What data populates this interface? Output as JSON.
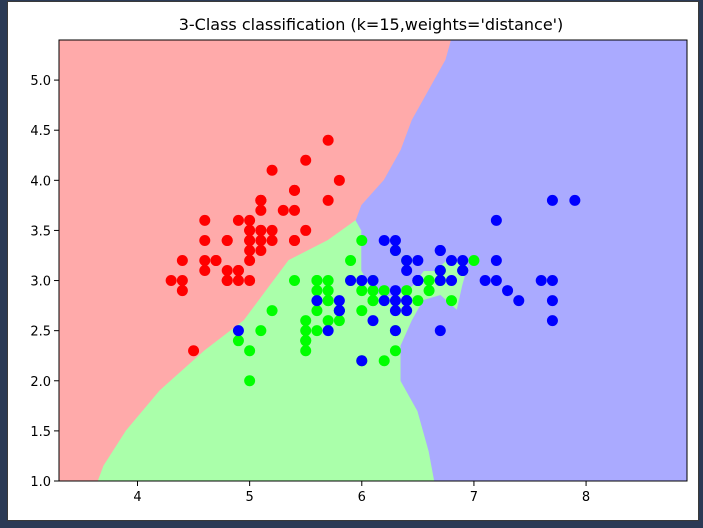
{
  "chart_data": {
    "type": "scatter",
    "title": "3-Class classification (k=15,weights='distance')",
    "xlabel": "",
    "ylabel": "",
    "xlim": [
      3.3,
      8.9
    ],
    "ylim": [
      1.0,
      5.4
    ],
    "xticks": [
      {
        "v": 4,
        "label": "4"
      },
      {
        "v": 5,
        "label": "5"
      },
      {
        "v": 6,
        "label": "6"
      },
      {
        "v": 7,
        "label": "7"
      },
      {
        "v": 8,
        "label": "8"
      }
    ],
    "yticks": [
      {
        "v": 1.0,
        "label": "1.0"
      },
      {
        "v": 1.5,
        "label": "1.5"
      },
      {
        "v": 2.0,
        "label": "2.0"
      },
      {
        "v": 2.5,
        "label": "2.5"
      },
      {
        "v": 3.0,
        "label": "3.0"
      },
      {
        "v": 3.5,
        "label": "3.5"
      },
      {
        "v": 4.0,
        "label": "4.0"
      },
      {
        "v": 4.5,
        "label": "4.5"
      },
      {
        "v": 5.0,
        "label": "5.0"
      }
    ],
    "grid": false,
    "regions": [
      {
        "class": "red",
        "color": "#ffaaaa",
        "points": [
          [
            3.3,
            1.0
          ],
          [
            3.3,
            5.4
          ],
          [
            6.8,
            5.4
          ],
          [
            6.75,
            5.2
          ],
          [
            6.6,
            4.9
          ],
          [
            6.45,
            4.6
          ],
          [
            6.35,
            4.3
          ],
          [
            6.2,
            4.0
          ],
          [
            6.0,
            3.75
          ],
          [
            5.95,
            3.6
          ],
          [
            5.7,
            3.4
          ],
          [
            5.35,
            3.2
          ],
          [
            5.15,
            2.9
          ],
          [
            4.95,
            2.6
          ],
          [
            4.6,
            2.3
          ],
          [
            4.2,
            1.9
          ],
          [
            3.9,
            1.5
          ],
          [
            3.7,
            1.15
          ],
          [
            3.65,
            1.0
          ]
        ]
      },
      {
        "class": "green",
        "color": "#aaffaa",
        "points": [
          [
            3.65,
            1.0
          ],
          [
            3.7,
            1.15
          ],
          [
            3.9,
            1.5
          ],
          [
            4.2,
            1.9
          ],
          [
            4.6,
            2.3
          ],
          [
            4.95,
            2.6
          ],
          [
            5.15,
            2.9
          ],
          [
            5.35,
            3.2
          ],
          [
            5.7,
            3.4
          ],
          [
            5.95,
            3.6
          ],
          [
            6.0,
            3.5
          ],
          [
            6.0,
            3.1
          ],
          [
            6.1,
            2.9
          ],
          [
            6.2,
            2.85
          ],
          [
            6.3,
            2.85
          ],
          [
            6.45,
            2.95
          ],
          [
            6.55,
            3.1
          ],
          [
            6.65,
            3.1
          ],
          [
            6.75,
            3.2
          ],
          [
            6.85,
            3.2
          ],
          [
            6.95,
            3.15
          ],
          [
            6.9,
            2.95
          ],
          [
            6.85,
            2.7
          ],
          [
            6.7,
            2.85
          ],
          [
            6.55,
            2.8
          ],
          [
            6.45,
            2.6
          ],
          [
            6.35,
            2.35
          ],
          [
            6.35,
            2.0
          ],
          [
            6.5,
            1.7
          ],
          [
            6.6,
            1.3
          ],
          [
            6.65,
            1.0
          ]
        ]
      },
      {
        "class": "blue",
        "color": "#aaaaff",
        "points": [
          [
            6.65,
            1.0
          ],
          [
            6.6,
            1.3
          ],
          [
            6.5,
            1.7
          ],
          [
            6.35,
            2.0
          ],
          [
            6.35,
            2.35
          ],
          [
            6.45,
            2.6
          ],
          [
            6.55,
            2.8
          ],
          [
            6.7,
            2.85
          ],
          [
            6.85,
            2.7
          ],
          [
            6.9,
            2.95
          ],
          [
            6.95,
            3.15
          ],
          [
            6.85,
            3.2
          ],
          [
            6.75,
            3.2
          ],
          [
            6.65,
            3.1
          ],
          [
            6.55,
            3.1
          ],
          [
            6.45,
            2.95
          ],
          [
            6.3,
            2.85
          ],
          [
            6.2,
            2.85
          ],
          [
            6.1,
            2.9
          ],
          [
            6.0,
            3.1
          ],
          [
            6.0,
            3.5
          ],
          [
            5.95,
            3.6
          ],
          [
            6.0,
            3.75
          ],
          [
            6.2,
            4.0
          ],
          [
            6.35,
            4.3
          ],
          [
            6.45,
            4.6
          ],
          [
            6.6,
            4.9
          ],
          [
            6.75,
            5.2
          ],
          [
            6.8,
            5.4
          ],
          [
            8.9,
            5.4
          ],
          [
            8.9,
            1.0
          ]
        ]
      }
    ],
    "series": [
      {
        "class": "red",
        "color": "#ff0000",
        "points": [
          [
            5.1,
            3.5
          ],
          [
            4.9,
            3.0
          ],
          [
            4.7,
            3.2
          ],
          [
            4.6,
            3.1
          ],
          [
            5.0,
            3.6
          ],
          [
            5.4,
            3.9
          ],
          [
            4.6,
            3.4
          ],
          [
            5.0,
            3.4
          ],
          [
            4.4,
            2.9
          ],
          [
            4.9,
            3.1
          ],
          [
            5.4,
            3.7
          ],
          [
            4.8,
            3.4
          ],
          [
            4.8,
            3.0
          ],
          [
            4.3,
            3.0
          ],
          [
            5.8,
            4.0
          ],
          [
            5.7,
            4.4
          ],
          [
            5.4,
            3.9
          ],
          [
            5.1,
            3.5
          ],
          [
            5.7,
            3.8
          ],
          [
            5.1,
            3.8
          ],
          [
            5.4,
            3.4
          ],
          [
            5.1,
            3.7
          ],
          [
            4.6,
            3.6
          ],
          [
            5.1,
            3.3
          ],
          [
            4.8,
            3.4
          ],
          [
            5.0,
            3.0
          ],
          [
            5.0,
            3.4
          ],
          [
            5.2,
            3.5
          ],
          [
            5.2,
            3.4
          ],
          [
            4.7,
            3.2
          ],
          [
            4.8,
            3.1
          ],
          [
            5.4,
            3.4
          ],
          [
            5.2,
            4.1
          ],
          [
            5.5,
            4.2
          ],
          [
            4.9,
            3.1
          ],
          [
            5.0,
            3.2
          ],
          [
            5.5,
            3.5
          ],
          [
            4.9,
            3.6
          ],
          [
            4.4,
            3.0
          ],
          [
            5.1,
            3.4
          ],
          [
            5.0,
            3.5
          ],
          [
            4.5,
            2.3
          ],
          [
            4.4,
            3.2
          ],
          [
            5.0,
            3.5
          ],
          [
            5.1,
            3.8
          ],
          [
            4.8,
            3.0
          ],
          [
            5.1,
            3.8
          ],
          [
            4.6,
            3.2
          ],
          [
            5.3,
            3.7
          ],
          [
            5.0,
            3.3
          ]
        ]
      },
      {
        "class": "green",
        "color": "#00ff00",
        "points": [
          [
            6.4,
            3.2
          ],
          [
            6.9,
            3.1
          ],
          [
            5.5,
            2.3
          ],
          [
            6.5,
            2.8
          ],
          [
            5.7,
            2.8
          ],
          [
            6.3,
            3.3
          ],
          [
            4.9,
            2.4
          ],
          [
            6.6,
            2.9
          ],
          [
            5.2,
            2.7
          ],
          [
            5.0,
            2.0
          ],
          [
            5.9,
            3.0
          ],
          [
            6.0,
            2.2
          ],
          [
            6.1,
            2.9
          ],
          [
            5.6,
            2.9
          ],
          [
            6.7,
            3.1
          ],
          [
            5.6,
            3.0
          ],
          [
            5.8,
            2.7
          ],
          [
            6.2,
            2.2
          ],
          [
            5.6,
            2.5
          ],
          [
            5.9,
            3.2
          ],
          [
            6.1,
            2.8
          ],
          [
            6.3,
            2.5
          ],
          [
            6.1,
            2.8
          ],
          [
            6.4,
            2.9
          ],
          [
            6.6,
            3.0
          ],
          [
            6.8,
            2.8
          ],
          [
            6.7,
            3.0
          ],
          [
            6.0,
            2.9
          ],
          [
            5.7,
            2.6
          ],
          [
            5.5,
            2.4
          ],
          [
            5.5,
            2.4
          ],
          [
            5.8,
            2.7
          ],
          [
            6.0,
            2.7
          ],
          [
            5.4,
            3.0
          ],
          [
            6.0,
            3.4
          ],
          [
            6.7,
            3.1
          ],
          [
            6.3,
            2.3
          ],
          [
            5.6,
            3.0
          ],
          [
            5.5,
            2.5
          ],
          [
            5.5,
            2.6
          ],
          [
            6.1,
            3.0
          ],
          [
            5.8,
            2.6
          ],
          [
            5.0,
            2.3
          ],
          [
            5.6,
            2.7
          ],
          [
            5.7,
            3.0
          ],
          [
            5.7,
            2.9
          ],
          [
            6.2,
            2.9
          ],
          [
            5.1,
            2.5
          ],
          [
            5.7,
            2.8
          ],
          [
            7.0,
            3.2
          ]
        ]
      },
      {
        "class": "blue",
        "color": "#0000ff",
        "points": [
          [
            6.3,
            3.3
          ],
          [
            5.8,
            2.7
          ],
          [
            7.1,
            3.0
          ],
          [
            6.3,
            2.9
          ],
          [
            6.5,
            3.0
          ],
          [
            7.6,
            3.0
          ],
          [
            4.9,
            2.5
          ],
          [
            7.3,
            2.9
          ],
          [
            6.7,
            2.5
          ],
          [
            7.2,
            3.6
          ],
          [
            6.5,
            3.2
          ],
          [
            6.4,
            2.7
          ],
          [
            6.8,
            3.0
          ],
          [
            5.7,
            2.5
          ],
          [
            5.8,
            2.8
          ],
          [
            6.4,
            3.2
          ],
          [
            6.5,
            3.0
          ],
          [
            7.7,
            3.8
          ],
          [
            7.7,
            2.6
          ],
          [
            6.0,
            2.2
          ],
          [
            6.9,
            3.2
          ],
          [
            5.6,
            2.8
          ],
          [
            7.7,
            2.8
          ],
          [
            6.3,
            2.7
          ],
          [
            6.7,
            3.3
          ],
          [
            7.2,
            3.2
          ],
          [
            6.2,
            2.8
          ],
          [
            6.1,
            3.0
          ],
          [
            6.4,
            2.8
          ],
          [
            7.2,
            3.0
          ],
          [
            7.4,
            2.8
          ],
          [
            7.9,
            3.8
          ],
          [
            6.4,
            2.8
          ],
          [
            6.3,
            2.8
          ],
          [
            6.1,
            2.6
          ],
          [
            7.7,
            3.0
          ],
          [
            6.3,
            3.4
          ],
          [
            6.4,
            3.1
          ],
          [
            6.0,
            3.0
          ],
          [
            6.9,
            3.1
          ],
          [
            6.7,
            3.1
          ],
          [
            6.9,
            3.1
          ],
          [
            5.8,
            2.7
          ],
          [
            6.8,
            3.2
          ],
          [
            6.7,
            3.3
          ],
          [
            6.7,
            3.0
          ],
          [
            6.3,
            2.5
          ],
          [
            6.5,
            3.0
          ],
          [
            6.2,
            3.4
          ],
          [
            5.9,
            3.0
          ]
        ]
      }
    ]
  }
}
